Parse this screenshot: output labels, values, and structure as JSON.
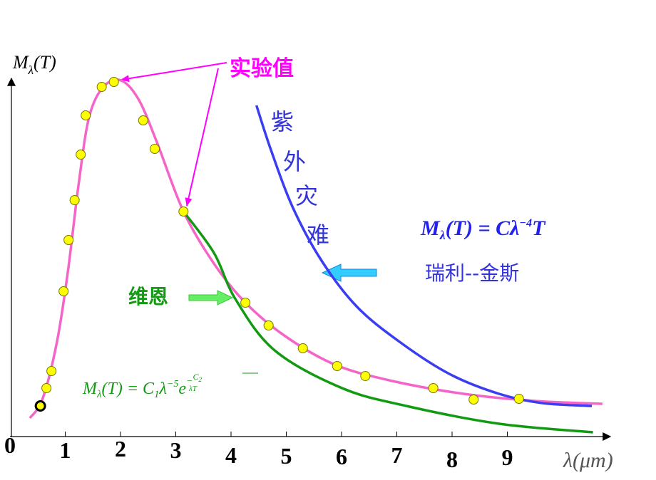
{
  "chart_data": {
    "type": "line",
    "y_label": [
      "M",
      "λ",
      "(T)"
    ],
    "x_label": "λ(μm)",
    "xlim": [
      0,
      10.8
    ],
    "ylim": [
      0,
      100
    ],
    "xticks": [
      0,
      1,
      2,
      3,
      4,
      5,
      6,
      7,
      8,
      9
    ],
    "annotations": {
      "experiment": "实验值",
      "uv_catastrophe": [
        "紫",
        "外",
        "灾",
        "难"
      ],
      "wien": "维恩",
      "rayleigh_jeans": "瑞利--金斯",
      "rj_formula": [
        "M",
        "λ",
        "(T) = Cλ",
        "−4",
        "T"
      ],
      "wien_formula": [
        "M",
        "λ",
        "(T) = C",
        "1",
        "λ",
        "−5",
        "e",
        "−",
        "C",
        "2",
        "λT"
      ]
    },
    "series": [
      {
        "type": "line",
        "color": "#f564c8",
        "x": [
          0.36,
          0.59,
          0.85,
          1.05,
          1.24,
          1.43,
          1.69,
          2.01,
          2.33,
          2.66,
          3.14,
          3.69,
          4.26,
          4.98,
          5.88,
          6.92,
          8.21,
          9.5,
          10.72
        ],
        "values": [
          5.2,
          10.6,
          26.6,
          46.6,
          70.6,
          89.6,
          98.2,
          100,
          94.6,
          82.6,
          63.2,
          48.6,
          37.6,
          28.2,
          20.2,
          15.6,
          12.0,
          10.0,
          9.2
        ]
      },
      {
        "type": "line",
        "color": "#129a12",
        "x": [
          3.14,
          3.69,
          4.08,
          4.79,
          6.01,
          7.17,
          8.85,
          10.55
        ],
        "values": [
          63.2,
          51.6,
          38.6,
          24.2,
          13.6,
          8.6,
          3.6,
          1.2
        ]
      },
      {
        "type": "line",
        "color": "#3a3ef0",
        "x": [
          4.46,
          4.72,
          5.11,
          5.63,
          6.27,
          7.05,
          7.95,
          8.85,
          9.63,
          10.53
        ],
        "values": [
          93.0,
          80.6,
          64.6,
          49.6,
          36.6,
          26.6,
          17.6,
          12.0,
          9.4,
          8.6
        ]
      },
      {
        "type": "scatter",
        "color": "#ffff00",
        "stroke": "#000000",
        "x": [
          0.55
        ],
        "values": [
          8.6
        ]
      },
      {
        "type": "scatter",
        "color": "#ffff00",
        "stroke": "#777700",
        "x": [
          0.66,
          0.75,
          0.97,
          1.06,
          1.17,
          1.28,
          1.37,
          1.66,
          1.88,
          2.41,
          2.62,
          3.14,
          4.26,
          4.68,
          5.3,
          5.92,
          6.43,
          7.66,
          8.39,
          9.21
        ],
        "values": [
          13.6,
          18.4,
          40.8,
          55.2,
          66.4,
          79.2,
          90.2,
          98.2,
          99.6,
          88.8,
          80.8,
          63.2,
          37.6,
          31.2,
          24.8,
          19.8,
          17.0,
          13.6,
          10.4,
          10.6
        ]
      }
    ]
  }
}
